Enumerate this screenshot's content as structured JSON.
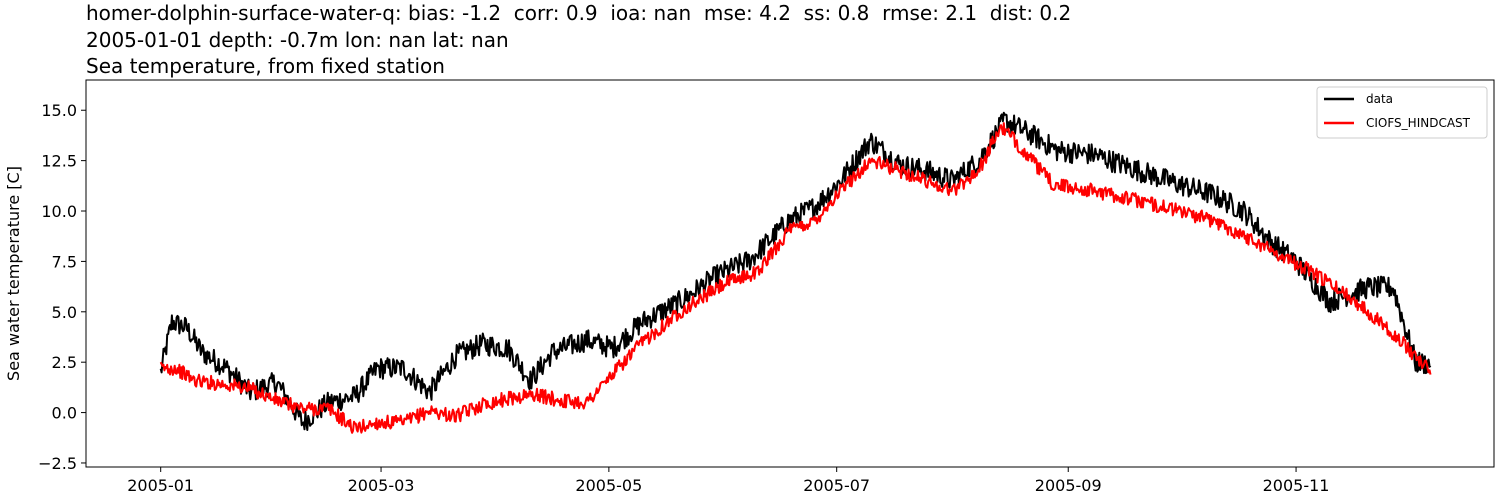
{
  "chart_data": {
    "type": "line",
    "title_lines": [
      "homer-dolphin-surface-water-q: bias: -1.2  corr: 0.9  ioa: nan  mse: 4.2  ss: 0.8  rmse: 2.1  dist: 0.2",
      "2005-01-01 depth: -0.7m lon: nan lat: nan",
      "Sea temperature, from fixed station"
    ],
    "xlabel": "",
    "ylabel": "Sea water temperature [C]",
    "xlim": [
      "2004-12-12",
      "2005-12-24"
    ],
    "ylim": [
      -2.7,
      16.5
    ],
    "x_ticks": [
      "2005-01",
      "2005-03",
      "2005-05",
      "2005-07",
      "2005-09",
      "2005-11"
    ],
    "y_ticks": [
      "−2.5",
      "0.0",
      "2.5",
      "5.0",
      "7.5",
      "10.0",
      "12.5",
      "15.0"
    ],
    "grid": false,
    "legend_position": "top-right",
    "series": [
      {
        "name": "data",
        "color": "#000000",
        "points": [
          [
            "2005-01-01",
            2.0
          ],
          [
            "2005-01-04",
            4.5
          ],
          [
            "2005-01-08",
            4.2
          ],
          [
            "2005-01-12",
            3.0
          ],
          [
            "2005-01-18",
            2.3
          ],
          [
            "2005-01-25",
            1.0
          ],
          [
            "2005-02-01",
            1.5
          ],
          [
            "2005-02-08",
            -0.5
          ],
          [
            "2005-02-15",
            0.5
          ],
          [
            "2005-02-22",
            0.8
          ],
          [
            "2005-02-28",
            2.2
          ],
          [
            "2005-03-07",
            2.2
          ],
          [
            "2005-03-14",
            1.0
          ],
          [
            "2005-03-21",
            2.8
          ],
          [
            "2005-03-28",
            3.4
          ],
          [
            "2005-04-04",
            3.2
          ],
          [
            "2005-04-10",
            1.6
          ],
          [
            "2005-04-16",
            3.0
          ],
          [
            "2005-04-25",
            3.6
          ],
          [
            "2005-05-02",
            3.2
          ],
          [
            "2005-05-10",
            4.5
          ],
          [
            "2005-05-20",
            5.5
          ],
          [
            "2005-05-30",
            6.8
          ],
          [
            "2005-06-08",
            7.6
          ],
          [
            "2005-06-18",
            9.5
          ],
          [
            "2005-06-25",
            10.2
          ],
          [
            "2005-07-02",
            11.5
          ],
          [
            "2005-07-10",
            13.5
          ],
          [
            "2005-07-18",
            12.3
          ],
          [
            "2005-07-25",
            12.0
          ],
          [
            "2005-08-01",
            11.5
          ],
          [
            "2005-08-08",
            12.5
          ],
          [
            "2005-08-15",
            14.5
          ],
          [
            "2005-08-22",
            13.8
          ],
          [
            "2005-08-29",
            13.0
          ],
          [
            "2005-09-08",
            12.8
          ],
          [
            "2005-09-20",
            12.0
          ],
          [
            "2005-10-01",
            11.3
          ],
          [
            "2005-10-10",
            10.8
          ],
          [
            "2005-10-18",
            10.0
          ],
          [
            "2005-10-25",
            8.5
          ],
          [
            "2005-11-01",
            7.5
          ],
          [
            "2005-11-10",
            5.5
          ],
          [
            "2005-11-20",
            6.2
          ],
          [
            "2005-11-27",
            6.2
          ],
          [
            "2005-12-03",
            2.5
          ],
          [
            "2005-12-07",
            2.4
          ]
        ]
      },
      {
        "name": "CIOFS_HINDCAST",
        "color": "#ff0000",
        "points": [
          [
            "2005-01-01",
            2.2
          ],
          [
            "2005-01-05",
            2.2
          ],
          [
            "2005-01-10",
            1.6
          ],
          [
            "2005-01-18",
            1.4
          ],
          [
            "2005-01-25",
            1.2
          ],
          [
            "2005-02-01",
            0.6
          ],
          [
            "2005-02-08",
            0.2
          ],
          [
            "2005-02-15",
            0.2
          ],
          [
            "2005-02-22",
            -0.8
          ],
          [
            "2005-02-28",
            -0.5
          ],
          [
            "2005-03-07",
            -0.5
          ],
          [
            "2005-03-14",
            0.1
          ],
          [
            "2005-03-21",
            -0.2
          ],
          [
            "2005-03-28",
            0.4
          ],
          [
            "2005-04-04",
            0.7
          ],
          [
            "2005-04-11",
            0.9
          ],
          [
            "2005-04-18",
            0.6
          ],
          [
            "2005-04-25",
            0.5
          ],
          [
            "2005-05-01",
            1.7
          ],
          [
            "2005-05-10",
            3.5
          ],
          [
            "2005-05-20",
            5.0
          ],
          [
            "2005-06-01",
            6.4
          ],
          [
            "2005-06-10",
            7.0
          ],
          [
            "2005-06-18",
            9.0
          ],
          [
            "2005-06-25",
            9.5
          ],
          [
            "2005-07-02",
            11.0
          ],
          [
            "2005-07-10",
            12.5
          ],
          [
            "2005-07-18",
            12.0
          ],
          [
            "2005-07-25",
            11.5
          ],
          [
            "2005-08-01",
            11.0
          ],
          [
            "2005-08-08",
            12.0
          ],
          [
            "2005-08-14",
            14.2
          ],
          [
            "2005-08-20",
            13.0
          ],
          [
            "2005-08-28",
            11.3
          ],
          [
            "2005-09-08",
            11.0
          ],
          [
            "2005-09-20",
            10.5
          ],
          [
            "2005-10-01",
            10.0
          ],
          [
            "2005-10-10",
            9.5
          ],
          [
            "2005-10-20",
            8.6
          ],
          [
            "2005-10-28",
            7.8
          ],
          [
            "2005-11-05",
            7.0
          ],
          [
            "2005-11-15",
            5.8
          ],
          [
            "2005-11-25",
            4.3
          ],
          [
            "2005-12-03",
            2.8
          ],
          [
            "2005-12-07",
            2.1
          ]
        ]
      }
    ]
  }
}
